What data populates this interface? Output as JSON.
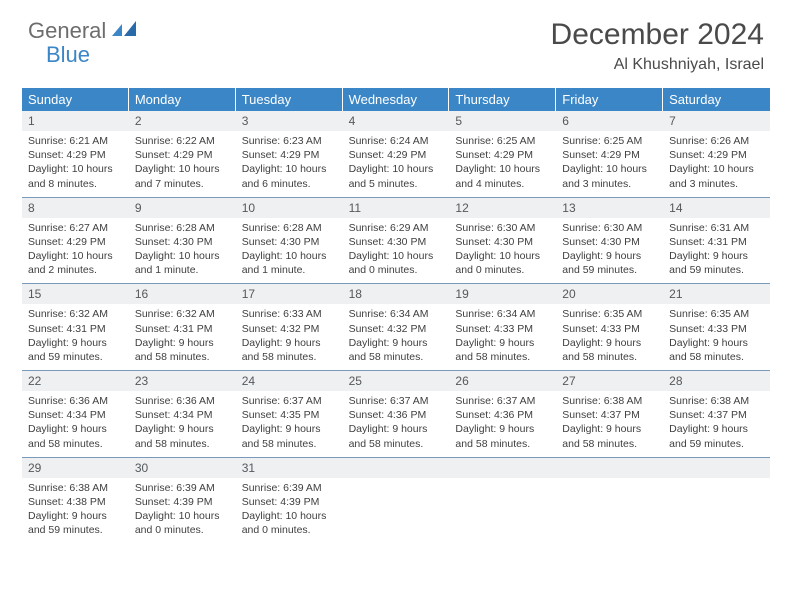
{
  "logo": {
    "text1": "General",
    "text2": "Blue"
  },
  "title": "December 2024",
  "location": "Al Khushniyah, Israel",
  "colors": {
    "header_bg": "#3b86c6",
    "header_text": "#ffffff",
    "daynum_bg": "#eef0f1",
    "daynum_text": "#55595c",
    "body_text": "#3f3f3f",
    "row_divider": "#7a9abb",
    "logo_gray": "#6d6d6d",
    "logo_blue": "#3b86c6",
    "title_color": "#4a4a4a",
    "page_bg": "#ffffff"
  },
  "typography": {
    "title_fontsize": 30,
    "location_fontsize": 16,
    "header_fontsize": 13,
    "daynum_fontsize": 12,
    "body_fontsize": 10.5,
    "logo_fontsize": 22
  },
  "dayNames": [
    "Sunday",
    "Monday",
    "Tuesday",
    "Wednesday",
    "Thursday",
    "Friday",
    "Saturday"
  ],
  "weeks": [
    [
      {
        "n": "1",
        "sr": "6:21 AM",
        "ss": "4:29 PM",
        "dl": "10 hours and 8 minutes."
      },
      {
        "n": "2",
        "sr": "6:22 AM",
        "ss": "4:29 PM",
        "dl": "10 hours and 7 minutes."
      },
      {
        "n": "3",
        "sr": "6:23 AM",
        "ss": "4:29 PM",
        "dl": "10 hours and 6 minutes."
      },
      {
        "n": "4",
        "sr": "6:24 AM",
        "ss": "4:29 PM",
        "dl": "10 hours and 5 minutes."
      },
      {
        "n": "5",
        "sr": "6:25 AM",
        "ss": "4:29 PM",
        "dl": "10 hours and 4 minutes."
      },
      {
        "n": "6",
        "sr": "6:25 AM",
        "ss": "4:29 PM",
        "dl": "10 hours and 3 minutes."
      },
      {
        "n": "7",
        "sr": "6:26 AM",
        "ss": "4:29 PM",
        "dl": "10 hours and 3 minutes."
      }
    ],
    [
      {
        "n": "8",
        "sr": "6:27 AM",
        "ss": "4:29 PM",
        "dl": "10 hours and 2 minutes."
      },
      {
        "n": "9",
        "sr": "6:28 AM",
        "ss": "4:30 PM",
        "dl": "10 hours and 1 minute."
      },
      {
        "n": "10",
        "sr": "6:28 AM",
        "ss": "4:30 PM",
        "dl": "10 hours and 1 minute."
      },
      {
        "n": "11",
        "sr": "6:29 AM",
        "ss": "4:30 PM",
        "dl": "10 hours and 0 minutes."
      },
      {
        "n": "12",
        "sr": "6:30 AM",
        "ss": "4:30 PM",
        "dl": "10 hours and 0 minutes."
      },
      {
        "n": "13",
        "sr": "6:30 AM",
        "ss": "4:30 PM",
        "dl": "9 hours and 59 minutes."
      },
      {
        "n": "14",
        "sr": "6:31 AM",
        "ss": "4:31 PM",
        "dl": "9 hours and 59 minutes."
      }
    ],
    [
      {
        "n": "15",
        "sr": "6:32 AM",
        "ss": "4:31 PM",
        "dl": "9 hours and 59 minutes."
      },
      {
        "n": "16",
        "sr": "6:32 AM",
        "ss": "4:31 PM",
        "dl": "9 hours and 58 minutes."
      },
      {
        "n": "17",
        "sr": "6:33 AM",
        "ss": "4:32 PM",
        "dl": "9 hours and 58 minutes."
      },
      {
        "n": "18",
        "sr": "6:34 AM",
        "ss": "4:32 PM",
        "dl": "9 hours and 58 minutes."
      },
      {
        "n": "19",
        "sr": "6:34 AM",
        "ss": "4:33 PM",
        "dl": "9 hours and 58 minutes."
      },
      {
        "n": "20",
        "sr": "6:35 AM",
        "ss": "4:33 PM",
        "dl": "9 hours and 58 minutes."
      },
      {
        "n": "21",
        "sr": "6:35 AM",
        "ss": "4:33 PM",
        "dl": "9 hours and 58 minutes."
      }
    ],
    [
      {
        "n": "22",
        "sr": "6:36 AM",
        "ss": "4:34 PM",
        "dl": "9 hours and 58 minutes."
      },
      {
        "n": "23",
        "sr": "6:36 AM",
        "ss": "4:34 PM",
        "dl": "9 hours and 58 minutes."
      },
      {
        "n": "24",
        "sr": "6:37 AM",
        "ss": "4:35 PM",
        "dl": "9 hours and 58 minutes."
      },
      {
        "n": "25",
        "sr": "6:37 AM",
        "ss": "4:36 PM",
        "dl": "9 hours and 58 minutes."
      },
      {
        "n": "26",
        "sr": "6:37 AM",
        "ss": "4:36 PM",
        "dl": "9 hours and 58 minutes."
      },
      {
        "n": "27",
        "sr": "6:38 AM",
        "ss": "4:37 PM",
        "dl": "9 hours and 58 minutes."
      },
      {
        "n": "28",
        "sr": "6:38 AM",
        "ss": "4:37 PM",
        "dl": "9 hours and 59 minutes."
      }
    ],
    [
      {
        "n": "29",
        "sr": "6:38 AM",
        "ss": "4:38 PM",
        "dl": "9 hours and 59 minutes."
      },
      {
        "n": "30",
        "sr": "6:39 AM",
        "ss": "4:39 PM",
        "dl": "10 hours and 0 minutes."
      },
      {
        "n": "31",
        "sr": "6:39 AM",
        "ss": "4:39 PM",
        "dl": "10 hours and 0 minutes."
      },
      {
        "empty": true
      },
      {
        "empty": true
      },
      {
        "empty": true
      },
      {
        "empty": true
      }
    ]
  ],
  "labels": {
    "sunrise": "Sunrise:",
    "sunset": "Sunset:",
    "daylight": "Daylight:"
  }
}
